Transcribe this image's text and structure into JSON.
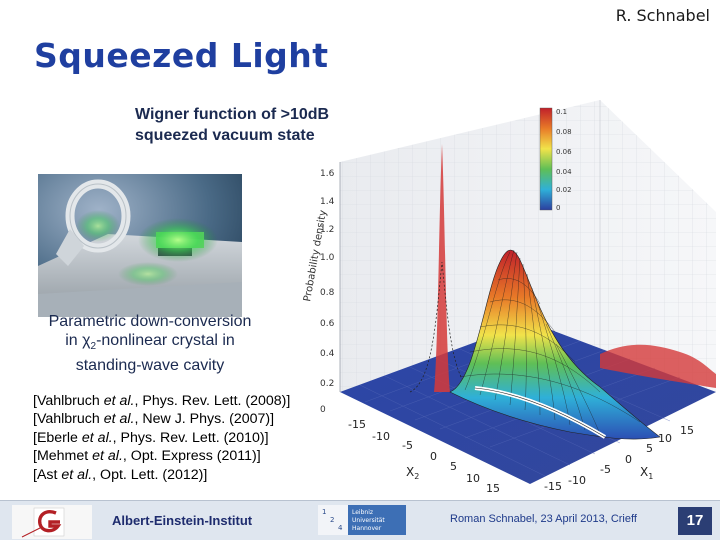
{
  "header": {
    "author": "R. Schnabel",
    "title": "Squeezed Light"
  },
  "plot": {
    "caption_line1": "Wigner function of >10dB",
    "caption_line2": "squeezed vacuum state",
    "z_axis_label": "Probability density",
    "z_ticks": [
      "1.6",
      "1.4",
      "1.2",
      "1.0",
      "0.8",
      "0.6",
      "0.4",
      "0.2",
      "0"
    ],
    "x2_label": "X",
    "x2_sub": "2",
    "x1_label": "X",
    "x1_sub": "1",
    "x2_ticks": [
      "-15",
      "-10",
      "-5",
      "0",
      "5",
      "10",
      "15"
    ],
    "x1_ticks": [
      "-15",
      "-10",
      "-5",
      "0",
      "5",
      "10",
      "15"
    ],
    "colorbar_ticks": [
      "0.1",
      "0.08",
      "0.06",
      "0.04",
      "0.02",
      "0"
    ]
  },
  "photo": {
    "caption_line1": "Parametric down-conversion",
    "caption_line2_pre": "in ",
    "caption_chi": "χ",
    "caption_chi_sub": "2",
    "caption_line2_post": "-nonlinear crystal in",
    "caption_line3": "standing-wave cavity"
  },
  "references": [
    {
      "pre": "[Vahlbruch ",
      "etal": "et al.",
      "post": ", Phys. Rev. Lett. (2008)]"
    },
    {
      "pre": "[Vahlbruch ",
      "etal": "et al.",
      "post": ", New J. Phys. (2007)]"
    },
    {
      "pre": "[Eberle ",
      "etal": "et al.",
      "post": ", Phys. Rev. Lett. (2010)]"
    },
    {
      "pre": "[Mehmet ",
      "etal": "et al.",
      "post": ", Opt. Express (2011)]"
    },
    {
      "pre": "[Ast ",
      "etal": "et al.",
      "post": ", Opt. Lett. (2012)]"
    }
  ],
  "footer": {
    "institute": "Albert-Einstein-Institut",
    "uni_line1": "Leibniz",
    "uni_line2": "Universität",
    "uni_line3": "Hannover",
    "uni_grid": [
      "1",
      "2",
      "4"
    ],
    "presenter": "Roman Schnabel, 23 April 2013, Crieff",
    "page_number": "17"
  }
}
